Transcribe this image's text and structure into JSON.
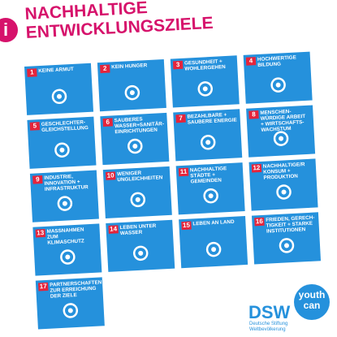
{
  "header": {
    "icon": "i",
    "title": [
      "NACHHALTIGE",
      "ENTWICKLUNGSZIELE"
    ]
  },
  "goals": [
    {
      "number": 1,
      "lines": [
        "KEINE ARMUT"
      ]
    },
    {
      "number": 2,
      "lines": [
        "KEIN HUNGER"
      ]
    },
    {
      "number": 3,
      "lines": [
        "GESUNDHEIT +",
        "WOHLERGEHEN"
      ]
    },
    {
      "number": 4,
      "lines": [
        "HOCHWERTIGE",
        "BILDUNG"
      ]
    },
    {
      "number": 5,
      "lines": [
        "GESCHLECHTER-",
        "GLEICHSTELLUNG"
      ]
    },
    {
      "number": 6,
      "lines": [
        "SAUBERES",
        "WASSER+SANITÄR-",
        "EINRICHTUNGEN"
      ]
    },
    {
      "number": 7,
      "lines": [
        "BEZAHLBARE +",
        "SAUBERE ENERGIE"
      ]
    },
    {
      "number": 8,
      "lines": [
        "MENSCHEN-",
        "WÜRDIGE ARBEIT",
        "+ WIRTSCHAFTS-",
        "WACHSTUM"
      ]
    },
    {
      "number": 9,
      "lines": [
        "INDUSTRIE,",
        "INNOVATION +",
        "INFRASTRUKTUR"
      ]
    },
    {
      "number": 10,
      "lines": [
        "WENIGER",
        "UNGLEICHHEITEN"
      ]
    },
    {
      "number": 11,
      "lines": [
        "NACHHALTIGE",
        "STÄDTE +",
        "GEMEINDEN"
      ]
    },
    {
      "number": 12,
      "lines": [
        "NACHHALTIGE/R",
        "KONSUM +",
        "PRODUKTION"
      ]
    },
    {
      "number": 13,
      "lines": [
        "MASSNAHMEN",
        "ZUM",
        "KLIMASCHUTZ"
      ]
    },
    {
      "number": 14,
      "lines": [
        "LEBEN UNTER",
        "WASSER"
      ]
    },
    {
      "number": 15,
      "lines": [
        "LEBEN AN LAND"
      ]
    },
    {
      "number": 16,
      "lines": [
        "FRIEDEN, GERECH-",
        "TIGKEIT + STARKE",
        "INSTITUTIONEN"
      ]
    },
    {
      "number": 17,
      "lines": [
        "PARTNERSCHAFTEN",
        "ZUR ERREICHUNG",
        "DER ZIELE"
      ]
    }
  ],
  "logo": {
    "name": "DSW",
    "bubble": [
      "youth",
      "can"
    ],
    "subtitle": [
      "Deutsche Stiftung",
      "Weltbevölkerung"
    ]
  }
}
